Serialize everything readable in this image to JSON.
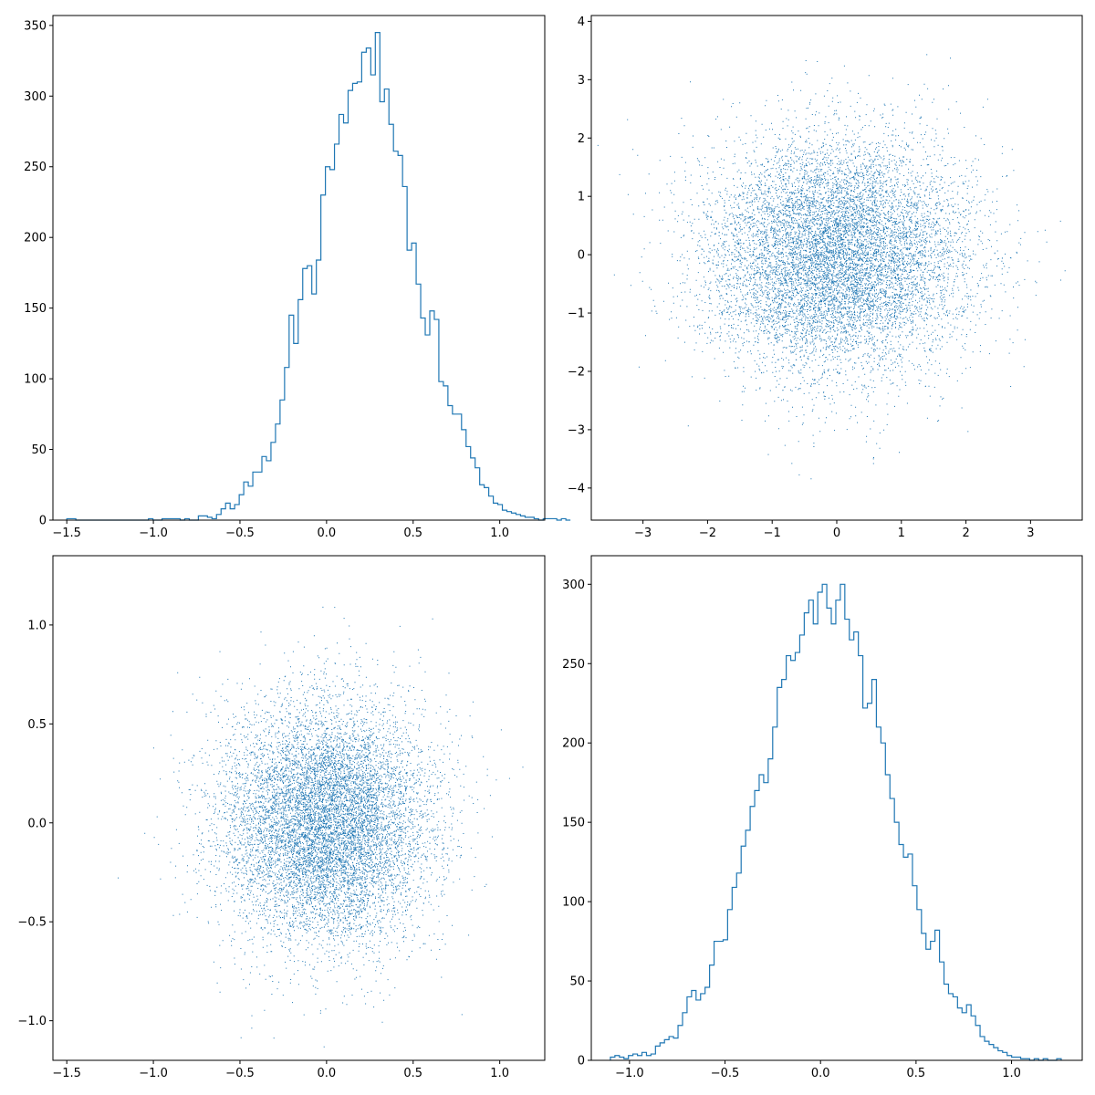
{
  "chart_data": [
    {
      "panel": "top-left",
      "type": "histogram",
      "histtype": "step",
      "xlim": [
        -1.58,
        1.26
      ],
      "ylim": [
        0,
        357
      ],
      "xticks": [
        -1.5,
        -1.0,
        -0.5,
        0.0,
        0.5,
        1.0
      ],
      "xtick_labels": [
        "−1.5",
        "−1.0",
        "−0.5",
        "0.0",
        "0.5",
        "1.0"
      ],
      "yticks": [
        0,
        50,
        100,
        150,
        200,
        250,
        300,
        350
      ],
      "ytick_labels": [
        "0",
        "50",
        "100",
        "150",
        "200",
        "250",
        "300",
        "350"
      ],
      "bin_start": -1.5,
      "bin_width": 0.0262,
      "counts": [
        1,
        1,
        0,
        0,
        0,
        0,
        0,
        0,
        0,
        0,
        0,
        0,
        0,
        0,
        0,
        0,
        0,
        0,
        1,
        0,
        0,
        1,
        1,
        1,
        1,
        0,
        1,
        0,
        0,
        3,
        3,
        2,
        1,
        4,
        8,
        12,
        8,
        11,
        18,
        27,
        24,
        34,
        34,
        45,
        42,
        55,
        68,
        85,
        108,
        145,
        125,
        156,
        178,
        180,
        160,
        184,
        230,
        250,
        248,
        266,
        287,
        281,
        304,
        309,
        310,
        331,
        334,
        315,
        345,
        296,
        305,
        280,
        261,
        258,
        236,
        191,
        196,
        167,
        143,
        131,
        148,
        142,
        98,
        95,
        81,
        75,
        75,
        64,
        52,
        44,
        37,
        25,
        23,
        17,
        12,
        11,
        7,
        6,
        5,
        4,
        3,
        2,
        2,
        1,
        0,
        1,
        1,
        1,
        0,
        1,
        0
      ]
    },
    {
      "panel": "top-right",
      "type": "scatter",
      "marker": "pixel",
      "n_points": 10000,
      "xlim": [
        -3.8,
        3.8
      ],
      "ylim": [
        -4.55,
        4.1
      ],
      "xticks": [
        -3,
        -2,
        -1,
        0,
        1,
        2,
        3
      ],
      "xtick_labels": [
        "−3",
        "−2",
        "−1",
        "0",
        "1",
        "2",
        "3"
      ],
      "yticks": [
        -4,
        -3,
        -2,
        -1,
        0,
        1,
        2,
        3,
        4
      ],
      "ytick_labels": [
        "−4",
        "−3",
        "−2",
        "−1",
        "0",
        "1",
        "2",
        "3",
        "4"
      ],
      "x_mean": 0.0,
      "x_std": 1.0,
      "y_mean": 0.0,
      "y_std": 1.0
    },
    {
      "panel": "bottom-left",
      "type": "scatter",
      "marker": "pixel",
      "n_points": 10000,
      "xlim": [
        -1.58,
        1.26
      ],
      "ylim": [
        -1.2,
        1.35
      ],
      "xticks": [
        -1.5,
        -1.0,
        -0.5,
        0.0,
        0.5,
        1.0
      ],
      "xtick_labels": [
        "−1.5",
        "−1.0",
        "−0.5",
        "0.0",
        "0.5",
        "1.0"
      ],
      "yticks": [
        -1.0,
        -0.5,
        0.0,
        0.5,
        1.0
      ],
      "ytick_labels": [
        "−1.0",
        "−0.5",
        "0.0",
        "0.5",
        "1.0"
      ],
      "x_mean": 0.0,
      "x_std": 0.3,
      "y_mean": 0.0,
      "y_std": 0.3
    },
    {
      "panel": "bottom-right",
      "type": "histogram",
      "histtype": "step",
      "xlim": [
        -1.2,
        1.37
      ],
      "ylim": [
        0,
        318
      ],
      "xticks": [
        -1.0,
        -0.5,
        0.0,
        0.5,
        1.0
      ],
      "xtick_labels": [
        "−1.0",
        "−0.5",
        "0.0",
        "0.5",
        "1.0"
      ],
      "yticks": [
        0,
        50,
        100,
        150,
        200,
        250,
        300
      ],
      "ytick_labels": [
        "0",
        "50",
        "100",
        "150",
        "200",
        "250",
        "300"
      ],
      "bin_start": -1.1,
      "bin_width": 0.0236,
      "counts": [
        2,
        3,
        2,
        1,
        3,
        4,
        3,
        5,
        3,
        4,
        9,
        11,
        13,
        15,
        14,
        22,
        30,
        40,
        44,
        38,
        42,
        46,
        60,
        75,
        75,
        76,
        95,
        109,
        118,
        135,
        145,
        160,
        170,
        180,
        175,
        190,
        210,
        235,
        240,
        255,
        252,
        257,
        268,
        282,
        290,
        275,
        295,
        300,
        285,
        275,
        290,
        300,
        278,
        265,
        270,
        255,
        222,
        225,
        240,
        210,
        200,
        180,
        165,
        150,
        136,
        128,
        130,
        110,
        95,
        80,
        70,
        75,
        82,
        62,
        48,
        42,
        40,
        33,
        30,
        35,
        28,
        22,
        15,
        12,
        10,
        8,
        6,
        5,
        3,
        2,
        2,
        1,
        1,
        0,
        1,
        0,
        1,
        0,
        0,
        1
      ]
    }
  ],
  "colors": {
    "series": "#1f77b4",
    "axes": "#000000",
    "background": "#ffffff"
  }
}
